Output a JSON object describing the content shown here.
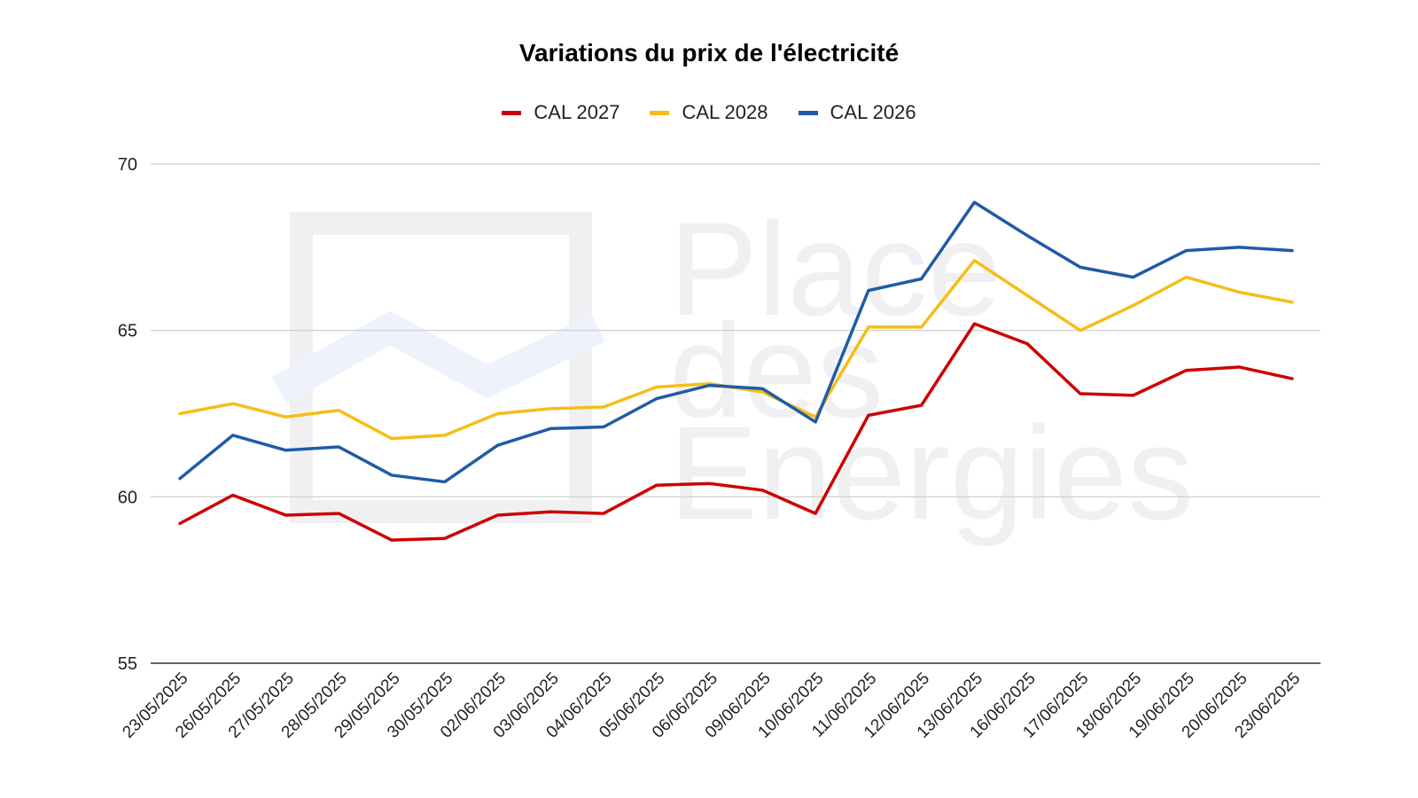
{
  "chart_data": {
    "type": "line",
    "title": "Variations du prix de l'électricité",
    "watermark": [
      "Place",
      "des",
      "Energies"
    ],
    "x": [
      "23/05/2025",
      "26/05/2025",
      "27/05/2025",
      "28/05/2025",
      "29/05/2025",
      "30/05/2025",
      "02/06/2025",
      "03/06/2025",
      "04/06/2025",
      "05/06/2025",
      "06/06/2025",
      "09/06/2025",
      "10/06/2025",
      "11/06/2025",
      "12/06/2025",
      "13/06/2025",
      "16/06/2025",
      "17/06/2025",
      "18/06/2025",
      "19/06/2025",
      "20/06/2025",
      "23/06/2025"
    ],
    "yticks": [
      "55",
      "60",
      "65",
      "70"
    ],
    "ylim": [
      55,
      70
    ],
    "grid": true,
    "legend_position": "top-center",
    "series": [
      {
        "name": "CAL 2027",
        "color": "#cc0000",
        "values": [
          59.2,
          60.05,
          59.45,
          59.5,
          58.7,
          58.75,
          59.45,
          59.55,
          59.5,
          60.35,
          60.4,
          60.2,
          59.5,
          62.45,
          62.75,
          65.2,
          64.6,
          63.1,
          63.05,
          63.8,
          63.9,
          63.55
        ]
      },
      {
        "name": "CAL 2028",
        "color": "#f6bd16",
        "values": [
          62.5,
          62.8,
          62.4,
          62.6,
          61.75,
          61.85,
          62.5,
          62.65,
          62.7,
          63.3,
          63.4,
          63.15,
          62.4,
          65.1,
          65.1,
          67.1,
          66.05,
          65.0,
          65.75,
          66.6,
          66.15,
          65.85
        ]
      },
      {
        "name": "CAL 2026",
        "color": "#1f5ba6",
        "values": [
          60.55,
          61.85,
          61.4,
          61.5,
          60.65,
          60.45,
          61.55,
          62.05,
          62.1,
          62.95,
          63.35,
          63.25,
          62.25,
          66.2,
          66.55,
          68.85,
          67.85,
          66.9,
          66.6,
          67.4,
          67.5,
          67.4
        ]
      }
    ]
  }
}
